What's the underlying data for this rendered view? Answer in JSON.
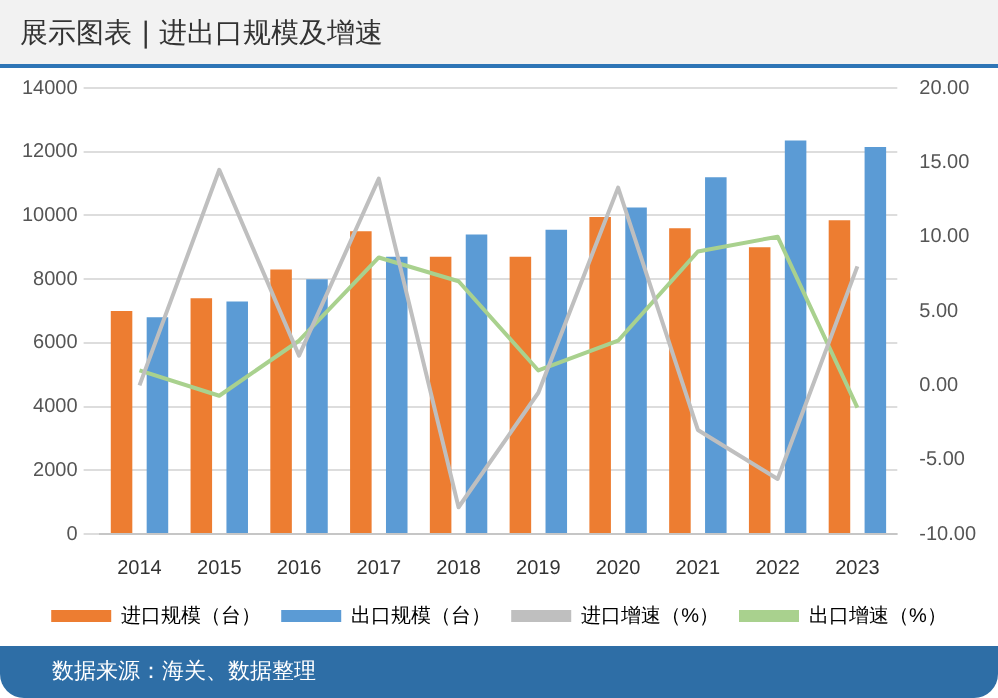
{
  "chart_data": {
    "type": "bar",
    "title": "展示图表 | 进出口规模及增速",
    "categories": [
      "2014",
      "2015",
      "2016",
      "2017",
      "2018",
      "2019",
      "2020",
      "2021",
      "2022",
      "2023"
    ],
    "series": [
      {
        "name": "进口规模（台）",
        "color": "#ed7d31",
        "values": [
          7000,
          7400,
          8300,
          9500,
          8700,
          8700,
          9950,
          9600,
          9000,
          9850
        ]
      },
      {
        "name": "出口规模（台）",
        "color": "#5b9bd5",
        "values": [
          6800,
          7300,
          8000,
          8700,
          9400,
          9550,
          10250,
          11200,
          12350,
          12150
        ]
      },
      {
        "name": "进口增速（%）",
        "type": "line",
        "axis": "y2",
        "color": "#bfbfbf",
        "values": [
          0,
          14.5,
          2,
          13.9,
          -8.2,
          -0.5,
          13.3,
          -3,
          -6.3,
          8
        ]
      },
      {
        "name": "出口增速（%）",
        "type": "line",
        "axis": "y2",
        "color": "#a9d18e",
        "values": [
          1,
          -0.7,
          3,
          8.6,
          7,
          1,
          3,
          9,
          10,
          -1.5
        ]
      }
    ],
    "ylim": [
      0,
      14000
    ],
    "yticks": [
      0,
      2000,
      4000,
      6000,
      8000,
      10000,
      12000,
      14000
    ],
    "y2lim": [
      -10,
      20
    ],
    "y2ticks": [
      {
        "value": -10,
        "label": "-10.00"
      },
      {
        "value": -5,
        "label": "-5.00"
      },
      {
        "value": 0,
        "label": "0.00"
      },
      {
        "value": 5,
        "label": "5.00"
      },
      {
        "value": 10,
        "label": "10.00"
      },
      {
        "value": 15,
        "label": "15.00"
      },
      {
        "value": 20,
        "label": "20.00"
      }
    ],
    "grid": "y",
    "legend": "bottom",
    "marker": "none",
    "annotations": [
      "数据来源：海关、数据整理"
    ]
  }
}
